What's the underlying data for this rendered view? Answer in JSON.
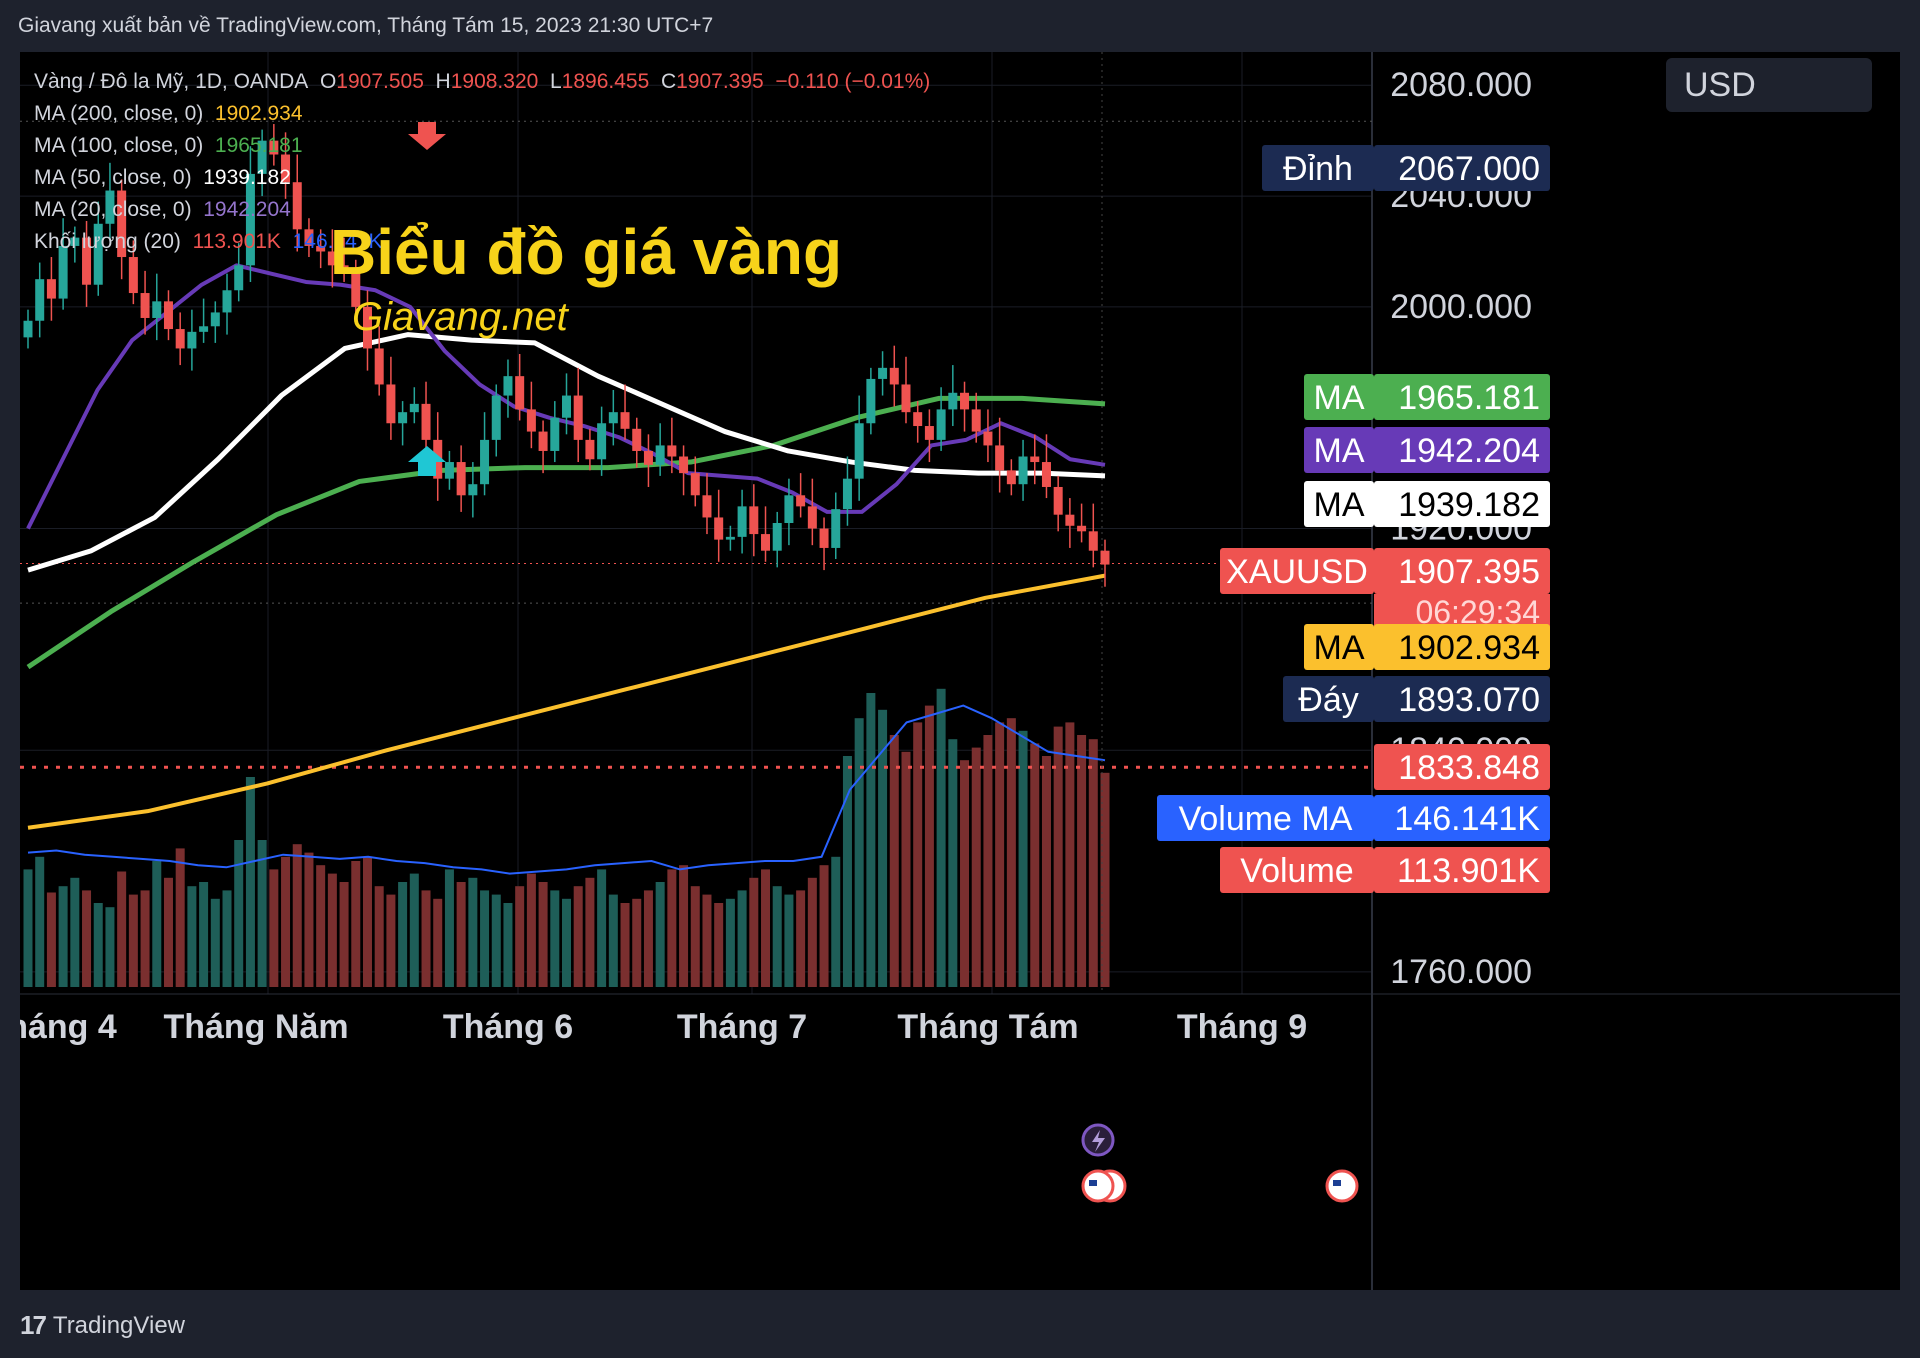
{
  "publisher": "Giavang xuất bản về TradingView.com, Tháng Tám 15, 2023 21:30 UTC+7",
  "legend": {
    "symbol": "Vàng / Đô la Mỹ, 1D, OANDA",
    "o_label": "O",
    "o": "1907.505",
    "h_label": "H",
    "h": "1908.320",
    "l_label": "L",
    "l": "1896.455",
    "c_label": "C",
    "c": "1907.395",
    "change": "−0.110 (−0.01%)",
    "ma200": "MA (200, close, 0)",
    "ma200_val": "1902.934",
    "ma100": "MA (100, close, 0)",
    "ma100_val": "1965.181",
    "ma50": "MA (50, close, 0)",
    "ma50_val": "1939.182",
    "ma20": "MA (20, close, 0)",
    "ma20_val": "1942.204",
    "vol": "Khối lượng (20)",
    "vol_val": "113.901K",
    "vol_ma_val": "146.141K"
  },
  "currency": "USD",
  "watermark": {
    "title": "Biểu đồ giá vàng",
    "subtitle": "Giavang.net"
  },
  "footer": "TradingView",
  "colors": {
    "up": "#26a69a",
    "down": "#ef5350",
    "ma200": "#fbc02d",
    "ma100": "#4caf50",
    "ma50": "#ffffff",
    "ma20": "#673ab7",
    "volma": "#2962ff"
  },
  "chart_data": {
    "type": "candlestick",
    "x_tick_labels": [
      "háng 4",
      "Tháng Năm",
      "Tháng 6",
      "Tháng 7",
      "Tháng Tám",
      "Tháng 9"
    ],
    "y_tick_labels": [
      "2080.000",
      "2040.000",
      "2000.000",
      "1920.000",
      "1840.000",
      "1760.000"
    ],
    "y_ticks": [
      2080,
      2040,
      2000,
      1920,
      1840,
      1760
    ],
    "ylim": [
      1752,
      2092
    ],
    "price_labels": [
      {
        "tag": "Đỉnh",
        "value": "2067.000",
        "tag_color": "#1c2b52",
        "val_color": "#1c2b52",
        "text_color": "#ffffff"
      },
      {
        "tag": "MA",
        "value": "1965.181",
        "tag_color": "#4caf50",
        "val_color": "#4caf50",
        "text_color": "#ffffff"
      },
      {
        "tag": "MA",
        "value": "1942.204",
        "tag_color": "#673ab7",
        "val_color": "#673ab7",
        "text_color": "#ffffff"
      },
      {
        "tag": "MA",
        "value": "1939.182",
        "tag_color": "#ffffff",
        "val_color": "#ffffff",
        "text_color": "#000000"
      },
      {
        "tag": "XAUUSD",
        "value": "1907.395",
        "extra": "06:29:34",
        "tag_color": "#ef5350",
        "val_color": "#ef5350",
        "text_color": "#ffffff"
      },
      {
        "tag": "MA",
        "value": "1902.934",
        "tag_color": "#fbc02d",
        "val_color": "#fbc02d",
        "text_color": "#000000"
      },
      {
        "tag": "Đáy",
        "value": "1893.070",
        "tag_color": "#1c2b52",
        "val_color": "#1c2b52",
        "text_color": "#ffffff"
      },
      {
        "tag": "",
        "value": "1833.848",
        "tag_color": "#ef5350",
        "val_color": "#ef5350",
        "text_color": "#ffffff"
      },
      {
        "tag": "Volume MA",
        "value": "146.141K",
        "tag_color": "#2962ff",
        "val_color": "#2962ff",
        "text_color": "#ffffff"
      },
      {
        "tag": "Volume",
        "value": "113.901K",
        "tag_color": "#ef5350",
        "val_color": "#ef5350",
        "text_color": "#ffffff"
      }
    ],
    "reference_lines": {
      "high": 2067.0,
      "low": 1893.07,
      "last": 1907.395,
      "marker": 1833.848
    },
    "price_path": [
      1995,
      2010,
      2003,
      2022,
      2025,
      2008,
      2030,
      2042,
      2018,
      2005,
      1996,
      2002,
      1992,
      1985,
      1991,
      1993,
      1998,
      2006,
      2015,
      2048,
      2060,
      2055,
      2045,
      2028,
      2022,
      2020,
      2015,
      2013,
      2000,
      1985,
      1972,
      1958,
      1962,
      1965,
      1952,
      1938,
      1944,
      1932,
      1936,
      1952,
      1968,
      1975,
      1963,
      1955,
      1948,
      1960,
      1968,
      1952,
      1945,
      1958,
      1962,
      1956,
      1948,
      1943,
      1950,
      1946,
      1940,
      1932,
      1924,
      1916,
      1917,
      1928,
      1918,
      1912,
      1922,
      1932,
      1928,
      1920,
      1913,
      1927,
      1938,
      1958,
      1974,
      1978,
      1972,
      1962,
      1957,
      1952,
      1963,
      1969,
      1963,
      1955,
      1950,
      1941,
      1936,
      1946,
      1944,
      1935,
      1925,
      1921,
      1919,
      1912,
      1907
    ],
    "ma20_path": [
      1920,
      1945,
      1970,
      1988,
      1998,
      2008,
      2015,
      2012,
      2009,
      2008,
      2006,
      2000,
      1984,
      1972,
      1964,
      1960,
      1957,
      1953,
      1947,
      1940,
      1939,
      1938,
      1933,
      1926,
      1926,
      1936,
      1950,
      1952,
      1958,
      1953,
      1945,
      1943
    ],
    "ma50_path": [
      1905,
      1912,
      1924,
      1945,
      1968,
      1985,
      1990,
      1988,
      1987,
      1975,
      1965,
      1955,
      1948,
      1944,
      1941,
      1940,
      1940,
      1939
    ],
    "ma100_path": [
      1870,
      1890,
      1908,
      1925,
      1937,
      1941,
      1942,
      1942,
      1944,
      1950,
      1960,
      1967,
      1967,
      1965
    ],
    "ma200_path": [
      1812,
      1818,
      1828,
      1840,
      1851,
      1862,
      1873,
      1884,
      1895,
      1903
    ],
    "volume_path": [
      56,
      62,
      45,
      48,
      52,
      46,
      40,
      38,
      55,
      44,
      46,
      60,
      52,
      66,
      48,
      50,
      42,
      46,
      70,
      100,
      70,
      56,
      62,
      68,
      64,
      58,
      54,
      50,
      60,
      62,
      48,
      44,
      50,
      54,
      46,
      42,
      56,
      50,
      52,
      46,
      44,
      40,
      48,
      54,
      50,
      46,
      42,
      48,
      52,
      56,
      44,
      40,
      42,
      46,
      50,
      56,
      58,
      48,
      44,
      40,
      42,
      46,
      52,
      56,
      48,
      44,
      46,
      52,
      58,
      62,
      110,
      128,
      140,
      132,
      120,
      112,
      126,
      134,
      142,
      118,
      108,
      114,
      120,
      126,
      128,
      122,
      116,
      110,
      124,
      126,
      120,
      118,
      102
    ],
    "volume_ma_path": [
      64,
      65,
      63,
      62,
      61,
      60,
      58,
      57,
      60,
      63,
      62,
      61,
      62,
      60,
      59,
      57,
      56,
      54,
      55,
      56,
      58,
      59,
      60,
      56,
      58,
      59,
      60,
      60,
      62,
      94,
      110,
      126,
      130,
      134,
      128,
      120,
      112,
      110,
      108
    ]
  }
}
